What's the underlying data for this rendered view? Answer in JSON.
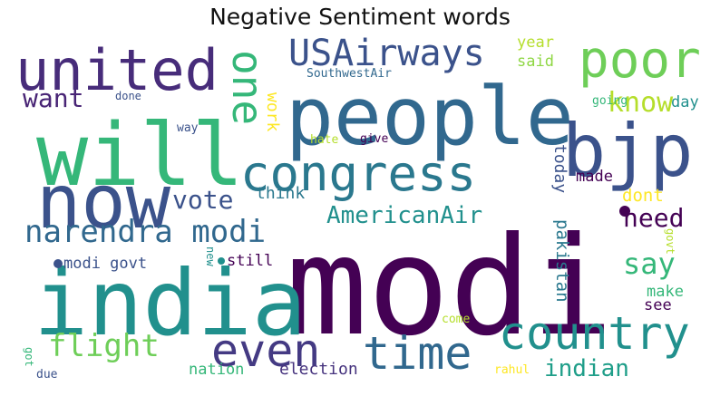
{
  "title": "Negative Sentiment words",
  "palette": {
    "dark_purple": "#440154",
    "indigo": "#3b528b",
    "slate": "#31688e",
    "teal": "#21908d",
    "green": "#35b779",
    "light_green": "#6ece58",
    "lime": "#b5de2b",
    "yellow": "#fde725"
  },
  "words": {
    "modi": "modi",
    "people": "people",
    "india": "india",
    "will": "will",
    "now": "now",
    "bjp": "bjp",
    "united": "united",
    "congress": "congress",
    "poor": "poor",
    "one": "one",
    "usairways": "USAirways",
    "country": "country",
    "time": "time",
    "even": "even",
    "narendra_modi": "narendra modi",
    "flight": "flight",
    "americanair": "AmericanAir",
    "vote": "vote",
    "know": "know",
    "want": "want",
    "need": "need",
    "say": "say",
    "indian": "indian",
    "modi_govt": "modi govt",
    "think": "think",
    "still": "still",
    "election": "election",
    "nation": "nation",
    "pakistan": "pakistan",
    "today": "today",
    "made": "made",
    "dont": "dont",
    "year": "year",
    "said": "said",
    "day": "day",
    "work": "work",
    "going": "going",
    "southwestair": "SouthwestAir",
    "done": "done",
    "way": "way",
    "hate": "hate",
    "give": "give",
    "new": "new",
    "make": "make",
    "see": "see",
    "govt": "govt",
    "got": "got",
    "due": "due",
    "come": "come",
    "rahul": "rahul"
  }
}
